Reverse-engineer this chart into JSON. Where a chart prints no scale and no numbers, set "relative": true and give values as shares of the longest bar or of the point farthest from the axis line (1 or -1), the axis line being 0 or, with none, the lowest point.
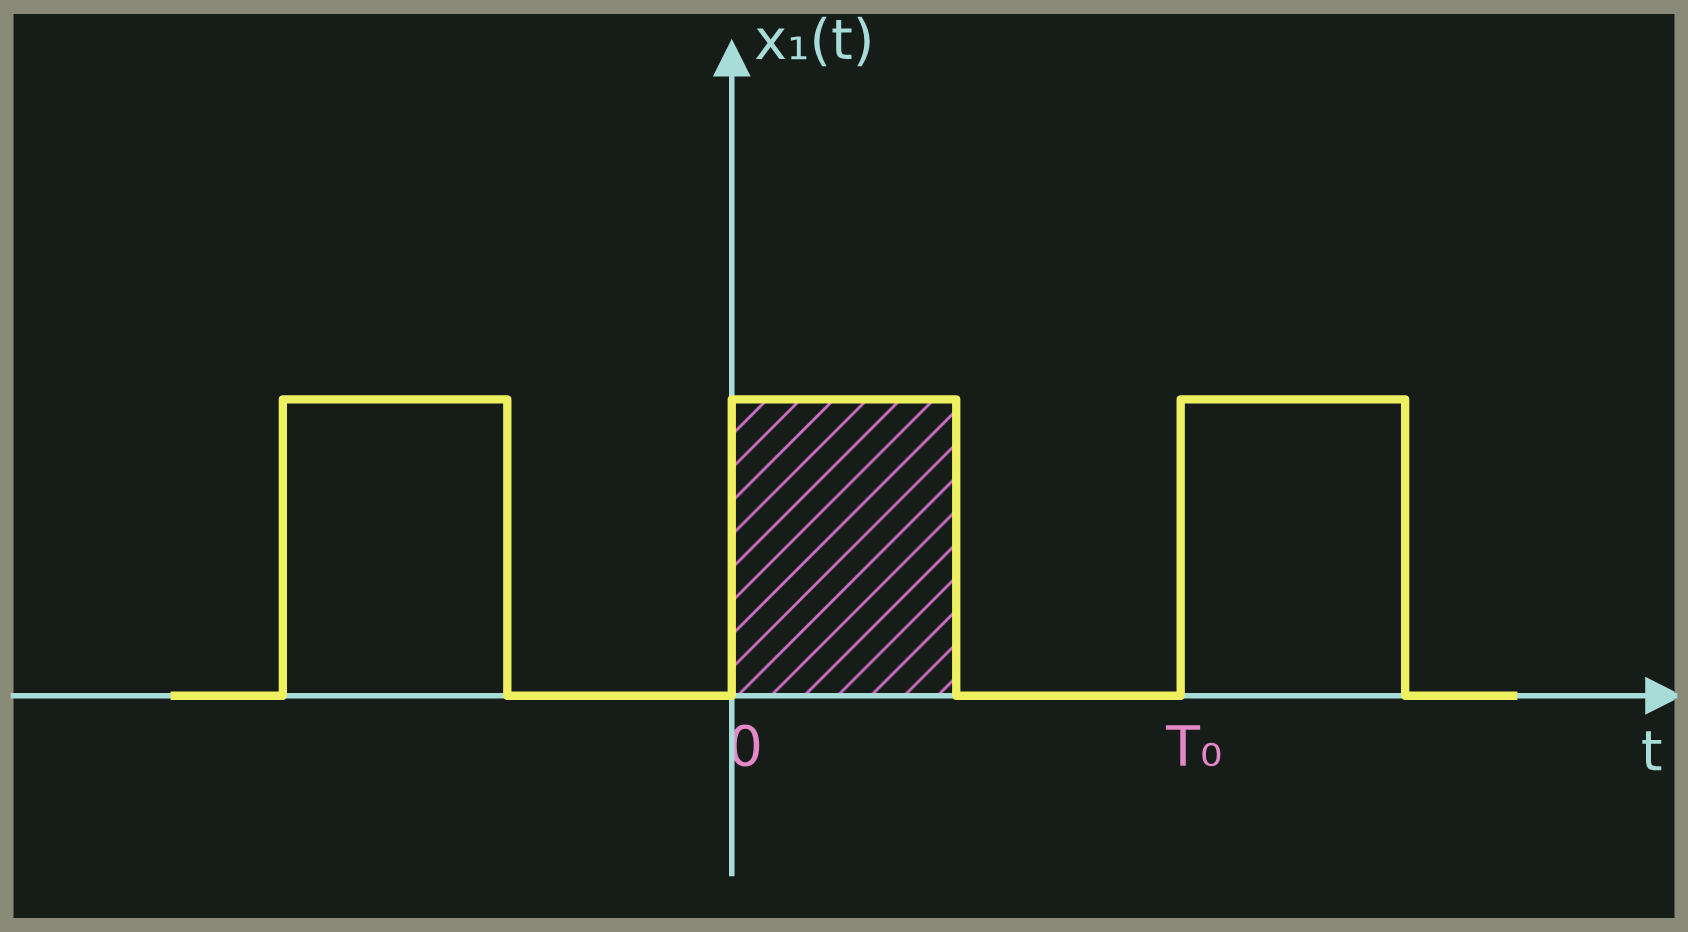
{
  "chart_data": {
    "type": "step",
    "relative": true,
    "annotations": [
      "x₁(t)"
    ],
    "xlabel": "t",
    "categories": [
      null,
      null,
      null,
      null,
      null,
      "0",
      null,
      null,
      null,
      "T₀",
      null,
      null
    ],
    "series": [
      {
        "color": "#eef060",
        "values": [
          0,
          1,
          1,
          0,
          0,
          1,
          1,
          0,
          0,
          1,
          1,
          0
        ]
      }
    ],
    "grid": false,
    "legend": false,
    "line_style": "solid"
  }
}
